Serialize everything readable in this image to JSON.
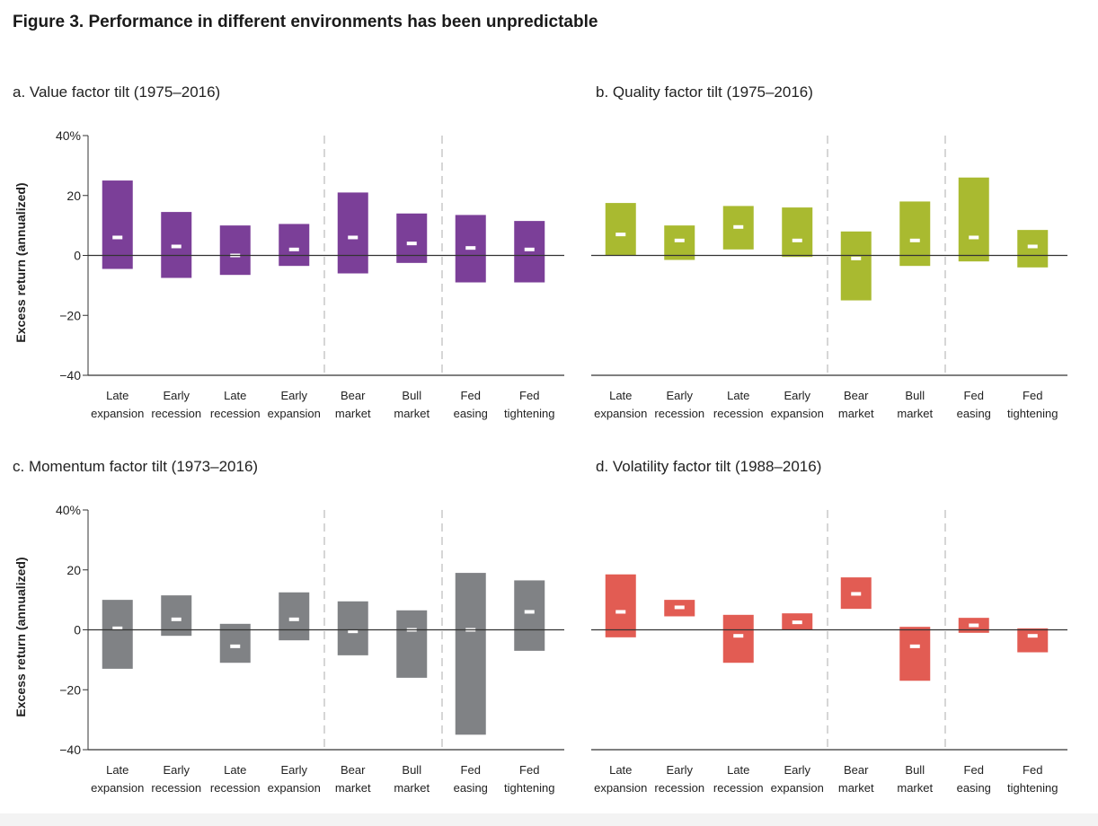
{
  "figure_title": "Figure 3. Performance in different environments has been unpredictable",
  "colors": {
    "value": "#7b3f98",
    "quality": "#a9ba30",
    "momentum": "#808285",
    "volatility": "#e25c53",
    "median_marker": "#ffffff",
    "axis": "#333333",
    "divider": "#c8c8c8"
  },
  "chart_data": [
    {
      "type": "bar",
      "title": "a. Value factor tilt (1975–2016)",
      "ylabel": "Excess return (annualized)",
      "ylim": [
        -40,
        40
      ],
      "yticks": [
        "40%",
        "20",
        "0",
        "−20",
        "−40"
      ],
      "categories": [
        [
          "Late",
          "expansion"
        ],
        [
          "Early",
          "recession"
        ],
        [
          "Late",
          "recession"
        ],
        [
          "Early",
          "expansion"
        ],
        [
          "Bear",
          "market"
        ],
        [
          "Bull",
          "market"
        ],
        [
          "Fed",
          "easing"
        ],
        [
          "Fed",
          "tightening"
        ]
      ],
      "range_low": [
        -4.5,
        -7.5,
        -6.5,
        -3.5,
        -6,
        -2.5,
        -9,
        -9
      ],
      "range_high": [
        25,
        14.5,
        10,
        10.5,
        21,
        14,
        13.5,
        11.5
      ],
      "median": [
        6,
        3,
        0,
        2,
        6,
        4,
        2.5,
        2
      ],
      "color_key": "value"
    },
    {
      "type": "bar",
      "title": "b. Quality factor tilt (1975–2016)",
      "ylabel": "",
      "ylim": [
        -40,
        40
      ],
      "yticks": [],
      "categories": [
        [
          "Late",
          "expansion"
        ],
        [
          "Early",
          "recession"
        ],
        [
          "Late",
          "recession"
        ],
        [
          "Early",
          "expansion"
        ],
        [
          "Bear",
          "market"
        ],
        [
          "Bull",
          "market"
        ],
        [
          "Fed",
          "easing"
        ],
        [
          "Fed",
          "tightening"
        ]
      ],
      "range_low": [
        0,
        -1.5,
        2,
        -0.5,
        -15,
        -3.5,
        -2,
        -4
      ],
      "range_high": [
        17.5,
        10,
        16.5,
        16,
        8,
        18,
        26,
        8.5
      ],
      "median": [
        7,
        5,
        9.5,
        5,
        -1,
        5,
        6,
        3
      ],
      "color_key": "quality"
    },
    {
      "type": "bar",
      "title": "c. Momentum factor tilt (1973–2016)",
      "ylabel": "Excess return (annualized)",
      "ylim": [
        -40,
        40
      ],
      "yticks": [
        "40%",
        "20",
        "0",
        "−20",
        "−40"
      ],
      "categories": [
        [
          "Late",
          "expansion"
        ],
        [
          "Early",
          "recession"
        ],
        [
          "Late",
          "recession"
        ],
        [
          "Early",
          "expansion"
        ],
        [
          "Bear",
          "market"
        ],
        [
          "Bull",
          "market"
        ],
        [
          "Fed",
          "easing"
        ],
        [
          "Fed",
          "tightening"
        ]
      ],
      "range_low": [
        -13,
        -2,
        -11,
        -3.5,
        -8.5,
        -16,
        -35,
        -7
      ],
      "range_high": [
        10,
        11.5,
        2,
        12.5,
        9.5,
        6.5,
        19,
        16.5
      ],
      "median": [
        0.5,
        3.5,
        -5.5,
        3.5,
        -0.5,
        0,
        0,
        6
      ],
      "color_key": "momentum"
    },
    {
      "type": "bar",
      "title": "d. Volatility factor tilt (1988–2016)",
      "ylabel": "",
      "ylim": [
        -40,
        40
      ],
      "yticks": [],
      "categories": [
        [
          "Late",
          "expansion"
        ],
        [
          "Early",
          "recession"
        ],
        [
          "Late",
          "recession"
        ],
        [
          "Early",
          "expansion"
        ],
        [
          "Bear",
          "market"
        ],
        [
          "Bull",
          "market"
        ],
        [
          "Fed",
          "easing"
        ],
        [
          "Fed",
          "tightening"
        ]
      ],
      "range_low": [
        -2.5,
        4.5,
        -11,
        0,
        7,
        -17,
        -1,
        -7.5
      ],
      "range_high": [
        18.5,
        10,
        5,
        5.5,
        17.5,
        1,
        4,
        0.5
      ],
      "median": [
        6,
        7.5,
        -2,
        2.5,
        12,
        -5.5,
        1.5,
        -2
      ],
      "color_key": "volatility"
    }
  ]
}
